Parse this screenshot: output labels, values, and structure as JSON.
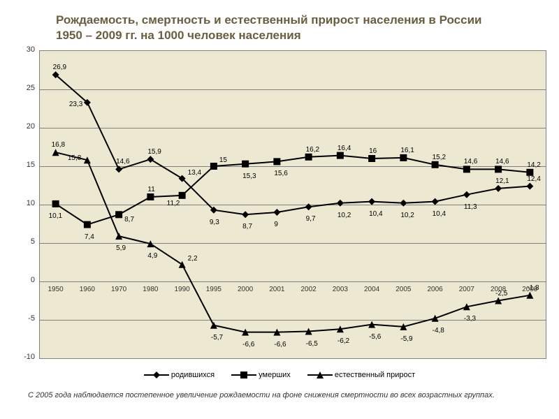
{
  "title": "Рождаемость, смертность и естественный прирост населения в России 1950 – 2009 гг. на 1000 человек населения",
  "title_color": "#6a5d40",
  "footnote": "С 2005 года наблюдается постепенное увеличение рождаемости на фоне снижения смертности во всех возрастных группах.",
  "chart": {
    "type": "line",
    "background_color": "#ede8d2",
    "grid_color": "#808080",
    "ylim": [
      -10,
      30
    ],
    "ytick_step": 5,
    "yticks": [
      -10,
      -5,
      0,
      5,
      10,
      15,
      20,
      25,
      30
    ],
    "categories": [
      "1950",
      "1960",
      "1970",
      "1980",
      "1990",
      "1995",
      "2000",
      "2001",
      "2002",
      "2003",
      "2004",
      "2005",
      "2006",
      "2007",
      "2008",
      "2009"
    ],
    "series": {
      "births": {
        "label": "родившихся",
        "marker": "diamond",
        "color": "#000000",
        "values": [
          26.9,
          23.3,
          14.6,
          15.9,
          13.4,
          9.3,
          8.7,
          9.0,
          9.7,
          10.2,
          10.4,
          10.2,
          10.4,
          11.3,
          12.1,
          12.4
        ],
        "label_offsets": [
          [
            -4,
            -16
          ],
          [
            -26,
            -3
          ],
          [
            -4,
            -16
          ],
          [
            -4,
            -16
          ],
          [
            8,
            -14
          ],
          [
            -6,
            12
          ],
          [
            -4,
            12
          ],
          [
            -4,
            12
          ],
          [
            -4,
            12
          ],
          [
            -4,
            12
          ],
          [
            -4,
            12
          ],
          [
            -4,
            12
          ],
          [
            -4,
            12
          ],
          [
            -4,
            12
          ],
          [
            -4,
            -16
          ],
          [
            -4,
            -16
          ]
        ]
      },
      "deaths": {
        "label": "умерших",
        "marker": "square",
        "color": "#000000",
        "values": [
          10.1,
          7.4,
          8.7,
          11.0,
          11.2,
          15.0,
          15.3,
          15.6,
          16.2,
          16.4,
          16.0,
          16.1,
          15.2,
          14.6,
          14.6,
          14.2
        ],
        "label_offsets": [
          [
            -10,
            12
          ],
          [
            -4,
            12
          ],
          [
            8,
            2
          ],
          [
            -4,
            -16
          ],
          [
            -22,
            6
          ],
          [
            8,
            -14
          ],
          [
            -4,
            12
          ],
          [
            -4,
            12
          ],
          [
            -4,
            -16
          ],
          [
            -4,
            -16
          ],
          [
            -4,
            -16
          ],
          [
            -4,
            -16
          ],
          [
            -4,
            -16
          ],
          [
            -4,
            -16
          ],
          [
            -4,
            -16
          ],
          [
            -4,
            -16
          ]
        ]
      },
      "natural": {
        "label": "естественный прирост",
        "marker": "triangle",
        "color": "#000000",
        "values": [
          16.8,
          15.8,
          5.9,
          4.9,
          2.2,
          -5.7,
          -6.6,
          -6.6,
          -6.5,
          -6.2,
          -5.6,
          -5.9,
          -4.8,
          -3.3,
          -2.5,
          -1.8
        ],
        "label_offsets": [
          [
            -6,
            -16
          ],
          [
            -28,
            -8
          ],
          [
            -4,
            12
          ],
          [
            -4,
            12
          ],
          [
            8,
            -14
          ],
          [
            -4,
            12
          ],
          [
            -4,
            12
          ],
          [
            -4,
            12
          ],
          [
            -4,
            12
          ],
          [
            -4,
            12
          ],
          [
            -4,
            12
          ],
          [
            -4,
            12
          ],
          [
            -4,
            12
          ],
          [
            -4,
            12
          ],
          [
            -4,
            -16
          ],
          [
            -4,
            -16
          ]
        ]
      }
    }
  }
}
